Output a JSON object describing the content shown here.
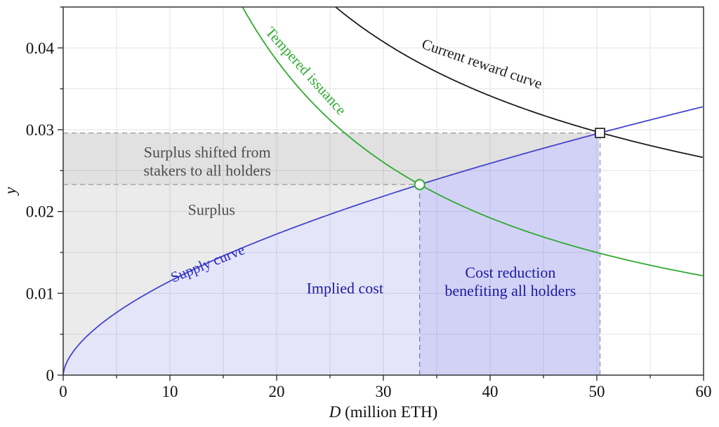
{
  "chart_data": {
    "type": "line",
    "title": "",
    "xlabel_variable": "D",
    "xlabel_unit": " (million ETH)",
    "ylabel": "y",
    "xlim": [
      0,
      60
    ],
    "ylim": [
      0,
      0.045
    ],
    "x_major_ticks": [
      0,
      10,
      20,
      30,
      40,
      50,
      60
    ],
    "x_minor_ticks": [
      5,
      15,
      25,
      35,
      45,
      55
    ],
    "y_major_ticks": [
      0,
      0.01,
      0.02,
      0.03,
      0.04
    ],
    "y_major_tick_labels": [
      "0",
      "0.01",
      "0.02",
      "0.03",
      "0.04"
    ],
    "y_minor_ticks": [
      0.005,
      0.015,
      0.025,
      0.035,
      0.045
    ],
    "grid": true,
    "grid_color": "#e3e3e3",
    "frame_color": "#333333",
    "x": [
      0,
      5,
      10,
      15,
      20,
      25,
      30,
      35,
      40,
      45,
      50,
      55,
      60
    ],
    "series": [
      {
        "name": "Supply curve",
        "color": "#4444cc",
        "values": [
          0,
          0.0077,
          0.0115,
          0.0146,
          0.0172,
          0.0197,
          0.0219,
          0.0239,
          0.0259,
          0.0277,
          0.0295,
          0.0312,
          0.0329
        ],
        "model": {
          "type": "power",
          "a": 0.00298,
          "p": 0.586
        },
        "label": {
          "text": [
            "Supply curve"
          ],
          "x": 13.7,
          "y": 0.0131,
          "rotation": -22,
          "color": "#2a2ac0"
        }
      },
      {
        "name": "Tempered issuance",
        "color": "#2faa2f",
        "values": [
          null,
          null,
          null,
          null,
          0.0385,
          0.0312,
          0.026,
          0.0222,
          0.0192,
          0.0169,
          0.015,
          0.0134,
          0.0121
        ],
        "model": {
          "type": "tempered",
          "a": 0.2948,
          "c": 28.08
        },
        "label": {
          "text": [
            "Tempered issuance"
          ],
          "x": 22.4,
          "y": 0.0368,
          "rotation": 48,
          "color": "#2faa2f"
        }
      },
      {
        "name": "Current reward curve",
        "color": "#1b1b1b",
        "values": [
          null,
          null,
          null,
          null,
          null,
          null,
          0.0408,
          0.0371,
          0.0341,
          0.0318,
          0.0298,
          0.0281,
          0.0266
        ],
        "model": {
          "type": "inverse_power",
          "k": 0.33,
          "p": 0.615
        },
        "label": {
          "text": [
            "Current reward curve"
          ],
          "x": 39.1,
          "y": 0.0375,
          "rotation": 19,
          "color": "#1b1b1b"
        }
      }
    ],
    "equilibria": {
      "tempered": {
        "D": 33.4,
        "y": 0.0233,
        "marker": "circle",
        "marker_stroke": "#2faa2f"
      },
      "current": {
        "D": 50.3,
        "y": 0.0296,
        "marker": "square",
        "marker_stroke": "#222222"
      }
    },
    "regions": [
      {
        "id": "implied-cost",
        "fill": "rgba(95,95,225,0.16)",
        "label": [
          "Implied cost"
        ],
        "label_color": "#1b1b9e",
        "label_x": 26.4,
        "label_y": 0.0106,
        "bounds": "below supply curve for 0 <= D <= 33.4"
      },
      {
        "id": "cost-reduction",
        "fill": "rgba(95,95,225,0.28)",
        "label": [
          "Cost reduction",
          "benefiting all holders"
        ],
        "label_color": "#1b1b9e",
        "label_x": 41.9,
        "label_y": 0.0115,
        "bounds": "below supply curve for 33.4 <= D <= 50.3"
      },
      {
        "id": "surplus",
        "fill": "rgba(70,70,70,0.105)",
        "label": [
          "Surplus"
        ],
        "label_color": "#4d4d4d",
        "label_x": 13.9,
        "label_y": 0.0202,
        "bounds": "above supply curve, below y = 0.0233, 0 <= D <= 33.4"
      },
      {
        "id": "surplus-shifted",
        "fill": "rgba(70,70,70,0.16)",
        "label": [
          "Surplus shifted from",
          "stakers to all holders"
        ],
        "label_color": "#4d4d4d",
        "label_x": 13.5,
        "label_y": 0.0262,
        "bounds": "left of supply curve, between y = 0.0233 and y = 0.0296"
      }
    ],
    "guides": [
      {
        "id": "h-current-yield",
        "type": "horizontal-dashed",
        "y": 0.0296,
        "from_x": 0,
        "to_x": 50.3,
        "color": "#a0a0a0"
      },
      {
        "id": "h-tempered-yield",
        "type": "horizontal-dashed",
        "y": 0.0233,
        "from_x": 0,
        "to_x": 33.4,
        "color": "#a0a0a0"
      },
      {
        "id": "v-tempered-deposit",
        "type": "vertical-dashed",
        "x": 33.4,
        "from_y": 0,
        "to_y": 0.0233,
        "color": "#7d7da6"
      },
      {
        "id": "v-current-deposit",
        "type": "vertical-dashed",
        "x": 50.3,
        "from_y": 0,
        "to_y": 0.0296,
        "color": "#9595b3"
      }
    ]
  }
}
